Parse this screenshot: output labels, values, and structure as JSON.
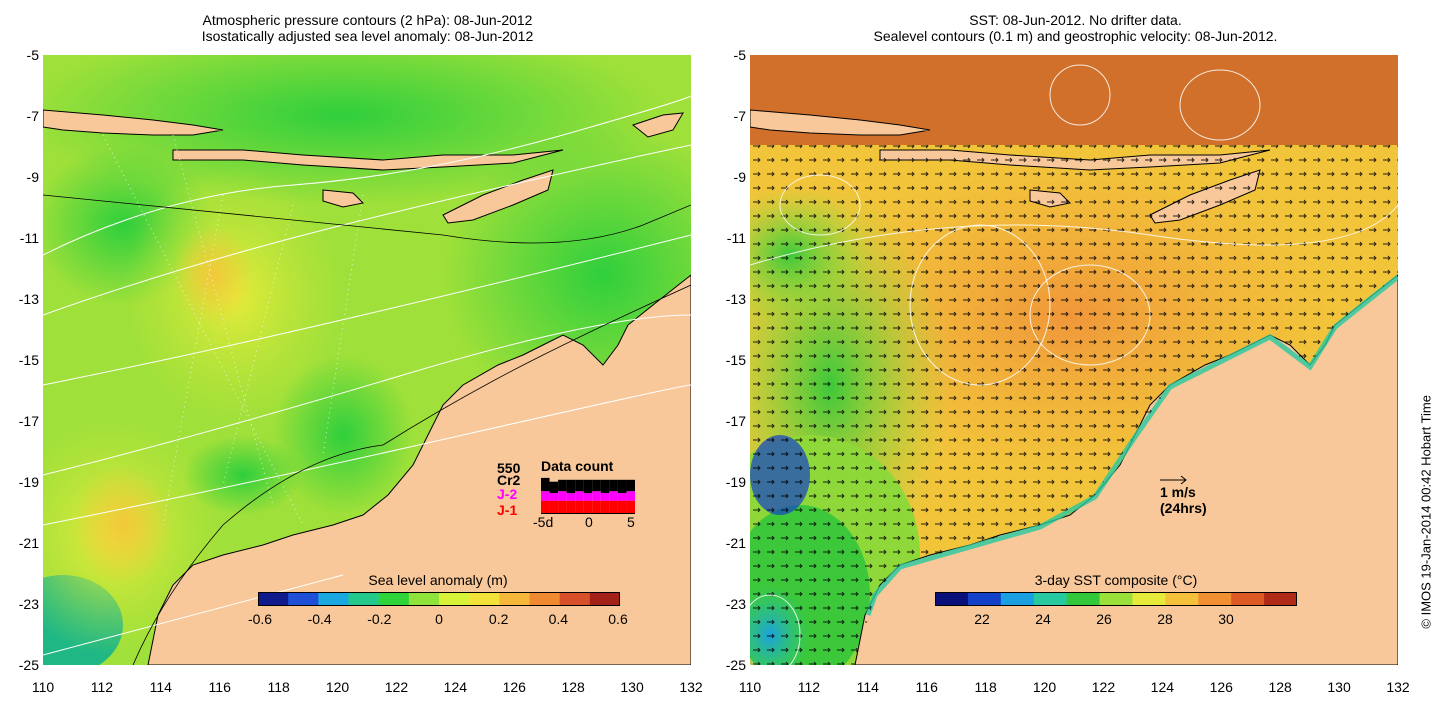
{
  "left": {
    "title_line1": "Atmospheric pressure contours (2 hPa): 08-Jun-2012",
    "title_line2": "Isostatically adjusted sea level anomaly: 08-Jun-2012",
    "colorbar": {
      "title": "Sea level anomaly (m)",
      "ticks": [
        "-0.6",
        "-0.4",
        "-0.2",
        "0",
        "0.2",
        "0.4",
        "0.6"
      ],
      "colors": [
        "#101a8a",
        "#1f4fd6",
        "#1ba8e0",
        "#22c98a",
        "#2fd33a",
        "#8fe33a",
        "#d8f23a",
        "#f2e23a",
        "#f5b83a",
        "#f08a30",
        "#d8502a",
        "#a2221a"
      ]
    },
    "data_count": {
      "title": "Data count",
      "max_label": "550",
      "sat_labels": [
        "Cr2",
        "J-2",
        "J-1"
      ],
      "sat_colors": [
        "#000000",
        "#ff00ff",
        "#ff0000"
      ],
      "days": [
        -5,
        -4,
        -3,
        -2,
        -1,
        0,
        1,
        2,
        3,
        4,
        5
      ],
      "j1": [
        0.35,
        0.35,
        0.35,
        0.35,
        0.35,
        0.35,
        0.35,
        0.35,
        0.35,
        0.35,
        0.35
      ],
      "j2": [
        0.25,
        0.2,
        0.25,
        0.2,
        0.25,
        0.2,
        0.25,
        0.2,
        0.25,
        0.2,
        0.25
      ],
      "cr2": [
        0.35,
        0.3,
        0.3,
        0.35,
        0.3,
        0.35,
        0.3,
        0.35,
        0.3,
        0.35,
        0.3
      ],
      "x_ticks": [
        "-5d",
        "0",
        "5"
      ]
    },
    "map_fill": "#7fd63a"
  },
  "right": {
    "title_line1": "SST: 08-Jun-2012. No drifter data.",
    "title_line2": "Sealevel contours (0.1 m) and geostrophic velocity: 08-Jun-2012.",
    "colorbar": {
      "title": "3-day SST composite (°C)",
      "ticks": [
        "22",
        "24",
        "26",
        "28",
        "30"
      ],
      "colors": [
        "#0a0f7a",
        "#1240c8",
        "#1aa0e0",
        "#27c9a0",
        "#32c83a",
        "#9ae03a",
        "#e6ea3a",
        "#f5c03a",
        "#f19032",
        "#de5a24",
        "#b02a18"
      ]
    },
    "scale_arrow": {
      "label_line1": "1 m/s",
      "label_line2": "(24hrs)"
    },
    "map_fill": "#e9a23a"
  },
  "axes": {
    "lat_labels": [
      "-5",
      "-7",
      "-9",
      "-11",
      "-13",
      "-15",
      "-17",
      "-19",
      "-21",
      "-23",
      "-25"
    ],
    "lon_labels": [
      "110",
      "112",
      "114",
      "116",
      "118",
      "120",
      "122",
      "124",
      "126",
      "128",
      "130",
      "132"
    ]
  },
  "land_color": "#f8c89a",
  "credit": "© IMOS 19-Jan-2014 00:42 Hobart Time"
}
